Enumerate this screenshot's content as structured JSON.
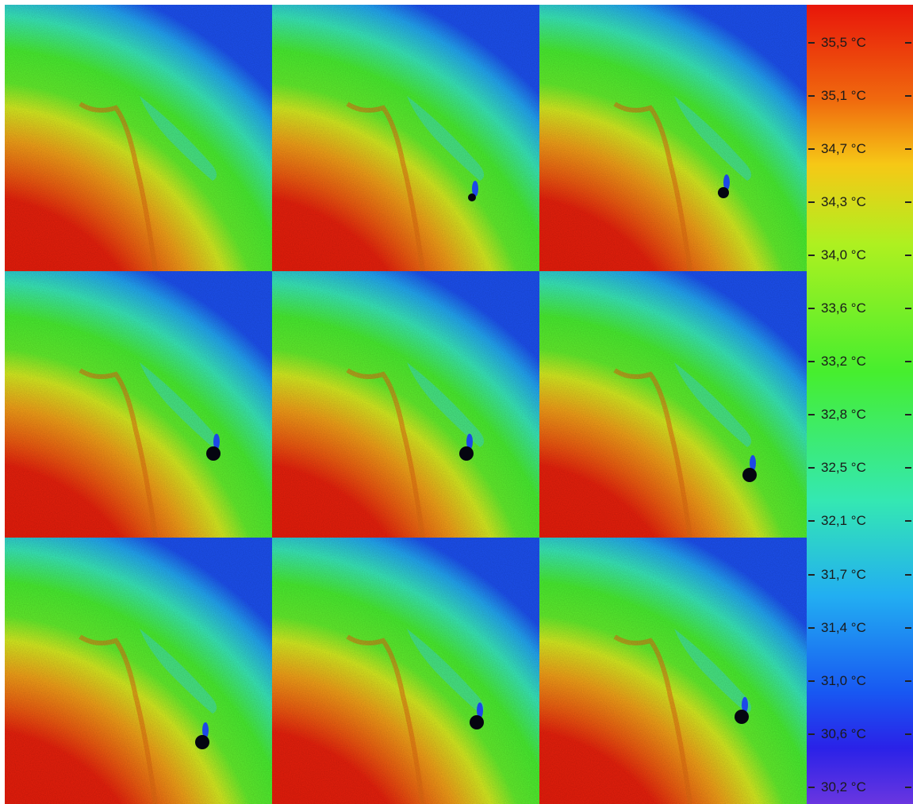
{
  "colorbar": {
    "labels": [
      "35,5 °C",
      "35,1 °C",
      "34,7 °C",
      "34,3 °C",
      "34,0 °C",
      "33,6 °C",
      "33,2 °C",
      "32,8 °C",
      "32,5 °C",
      "32,1 °C",
      "31,7 °C",
      "31,4 °C",
      "31,0 °C",
      "30,6 °C",
      "30,2 °C"
    ],
    "colors": [
      "#e8160a",
      "#f06a0e",
      "#f6c816",
      "#aef020",
      "#46ee2e",
      "#34e8b2",
      "#22aef2",
      "#1858f2",
      "#2a22e8",
      "#6a36e0"
    ]
  },
  "frames": [
    {
      "row": 1,
      "col": 1,
      "spot_visible": false
    },
    {
      "row": 1,
      "col": 2,
      "spot_visible": true
    },
    {
      "row": 1,
      "col": 3,
      "spot_visible": true
    },
    {
      "row": 2,
      "col": 1,
      "spot_visible": true
    },
    {
      "row": 2,
      "col": 2,
      "spot_visible": true
    },
    {
      "row": 2,
      "col": 3,
      "spot_visible": true
    },
    {
      "row": 3,
      "col": 1,
      "spot_visible": true
    },
    {
      "row": 3,
      "col": 2,
      "spot_visible": true
    },
    {
      "row": 3,
      "col": 3,
      "spot_visible": true
    }
  ]
}
